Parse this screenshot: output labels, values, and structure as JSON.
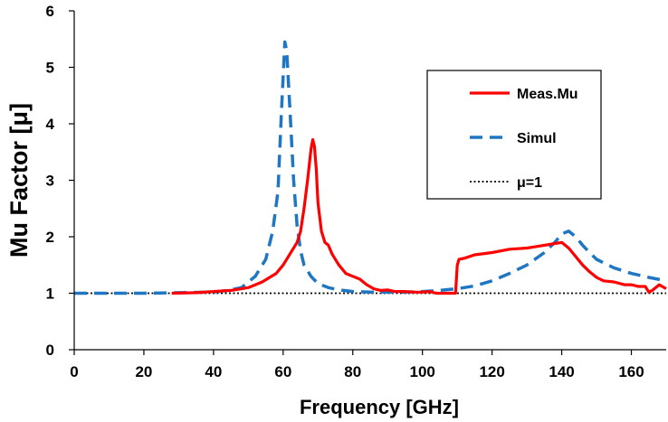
{
  "chart_data": {
    "type": "line",
    "title": "",
    "xlabel": "Frequency [GHz]",
    "ylabel": "Mu Factor [μ]",
    "xlim": [
      0,
      170
    ],
    "ylim": [
      0,
      6
    ],
    "xticks": [
      0,
      20,
      40,
      60,
      80,
      100,
      120,
      140,
      160
    ],
    "yticks": [
      0,
      1,
      2,
      3,
      4,
      5,
      6
    ],
    "grid": false,
    "legend_position": "top-right",
    "series": [
      {
        "name": "Meas.Mu",
        "color": "#ff0000",
        "style": "solid",
        "x": [
          28,
          35,
          40,
          45,
          50,
          54,
          58,
          60,
          62,
          64,
          65,
          66,
          67,
          68,
          68.5,
          69,
          69.5,
          70,
          71,
          72,
          73,
          74,
          76,
          78,
          80,
          82,
          84,
          86,
          88,
          90,
          92,
          95,
          98,
          100,
          102,
          104,
          106,
          108,
          109.5,
          110,
          110.5,
          112,
          115,
          120,
          125,
          130,
          132,
          135,
          138,
          140,
          142,
          144,
          146,
          148,
          150,
          152,
          155,
          158,
          160,
          162,
          164,
          165,
          166,
          168,
          170
        ],
        "y": [
          1.0,
          1.01,
          1.03,
          1.05,
          1.1,
          1.2,
          1.35,
          1.5,
          1.7,
          1.9,
          2.1,
          2.5,
          3.0,
          3.55,
          3.72,
          3.6,
          3.2,
          2.6,
          2.1,
          1.9,
          1.85,
          1.7,
          1.5,
          1.35,
          1.3,
          1.25,
          1.15,
          1.08,
          1.05,
          1.06,
          1.03,
          1.03,
          1.02,
          1.02,
          1.03,
          1.0,
          1.0,
          1.0,
          1.0,
          1.5,
          1.6,
          1.62,
          1.68,
          1.72,
          1.78,
          1.8,
          1.82,
          1.85,
          1.88,
          1.9,
          1.8,
          1.65,
          1.5,
          1.38,
          1.28,
          1.22,
          1.2,
          1.15,
          1.15,
          1.12,
          1.12,
          1.02,
          1.05,
          1.15,
          1.08
        ]
      },
      {
        "name": "Simul",
        "color": "#1f77c4",
        "style": "dashed",
        "x": [
          0,
          10,
          20,
          30,
          40,
          44,
          48,
          52,
          55,
          57,
          58.5,
          59.5,
          60.5,
          61,
          62,
          63,
          64,
          65,
          66,
          68,
          70,
          73,
          76,
          80,
          85,
          90,
          95,
          100,
          105,
          110,
          115,
          120,
          125,
          130,
          135,
          138,
          140,
          142,
          144,
          146,
          148,
          150,
          155,
          160,
          165,
          170
        ],
        "y": [
          1.0,
          1.0,
          1.0,
          1.01,
          1.02,
          1.05,
          1.1,
          1.3,
          1.6,
          2.1,
          2.8,
          4.2,
          5.45,
          5.3,
          4.2,
          3.0,
          2.2,
          1.75,
          1.5,
          1.3,
          1.17,
          1.1,
          1.06,
          1.03,
          1.02,
          1.02,
          1.02,
          1.03,
          1.05,
          1.08,
          1.13,
          1.22,
          1.35,
          1.5,
          1.72,
          1.9,
          2.05,
          2.1,
          2.0,
          1.85,
          1.72,
          1.6,
          1.45,
          1.35,
          1.28,
          1.22
        ]
      },
      {
        "name": "μ=1",
        "color": "#000000",
        "style": "dotted",
        "x": [
          0,
          170
        ],
        "y": [
          1,
          1
        ]
      }
    ]
  }
}
